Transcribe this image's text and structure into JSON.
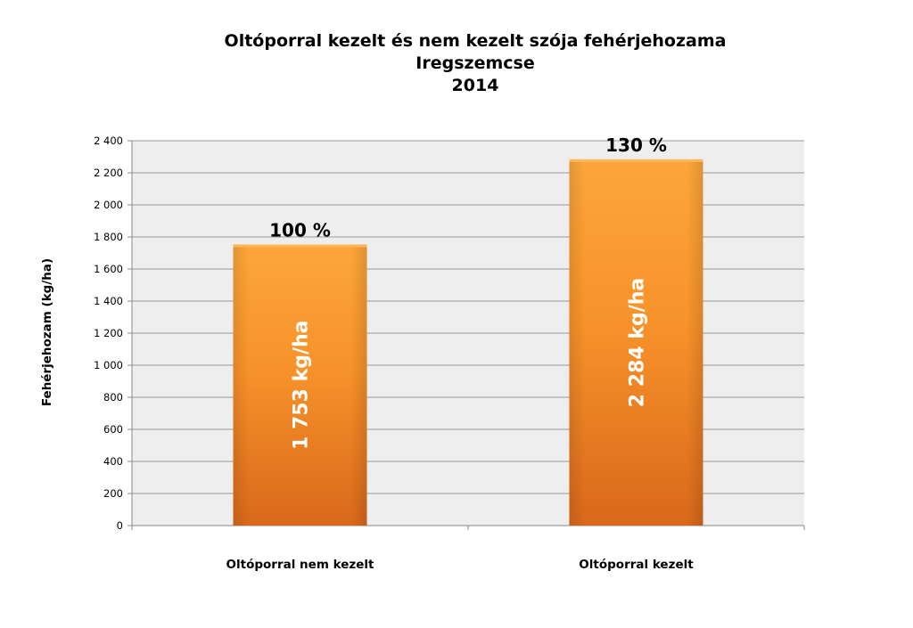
{
  "chart_data": {
    "type": "bar",
    "title": [
      "Oltóporral kezelt és nem kezelt szója fehérjehozama",
      "Iregszemcse",
      "2014"
    ],
    "ylabel": "Fehérjehozam (kg/ha)",
    "xlabel": "",
    "categories": [
      "Oltóporral nem kezelt",
      "Oltóporral kezelt"
    ],
    "values": [
      1753,
      2284
    ],
    "bar_labels": [
      "1 753 kg/ha",
      "2 284 kg/ha"
    ],
    "top_labels": [
      "100 %",
      "130 %"
    ],
    "ylim": [
      0,
      2400
    ],
    "yticks": [
      0,
      200,
      400,
      600,
      800,
      1000,
      1200,
      1400,
      1600,
      1800,
      2000,
      2200,
      2400
    ],
    "ytick_labels": [
      "0",
      "200",
      "400",
      "600",
      "800",
      "1 000",
      "1 200",
      "1 400",
      "1 600",
      "1 800",
      "2 000",
      "2 200",
      "2 400"
    ],
    "grid": true,
    "colors": {
      "bar_light": "#fca63a",
      "bar_mid": "#f7922a",
      "bar_dark": "#d9681b",
      "plot_bg": "#eeeeee",
      "grid": "#999999"
    }
  }
}
